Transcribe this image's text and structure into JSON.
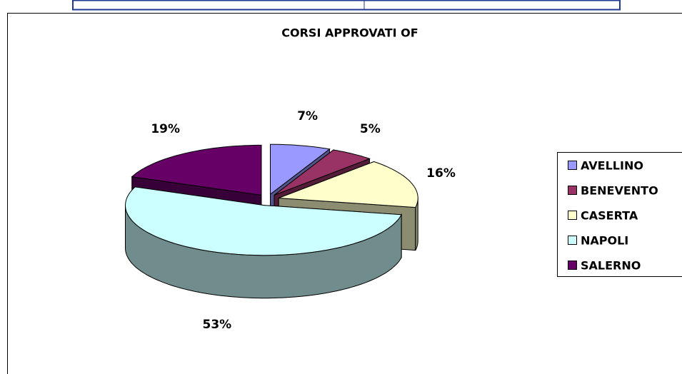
{
  "chart_data": {
    "type": "pie3d",
    "title": "CORSI APPROVATI OF",
    "categories": [
      "AVELLINO",
      "BENEVENTO",
      "CASERTA",
      "NAPOLI",
      "SALERNO"
    ],
    "values": [
      7,
      5,
      16,
      53,
      19
    ],
    "value_labels": [
      "7%",
      "5%",
      "16%",
      "53%",
      "19%"
    ],
    "colors": [
      "#9999ff",
      "#993366",
      "#ffffcc",
      "#ccffff",
      "#660066"
    ],
    "legend": "right"
  }
}
